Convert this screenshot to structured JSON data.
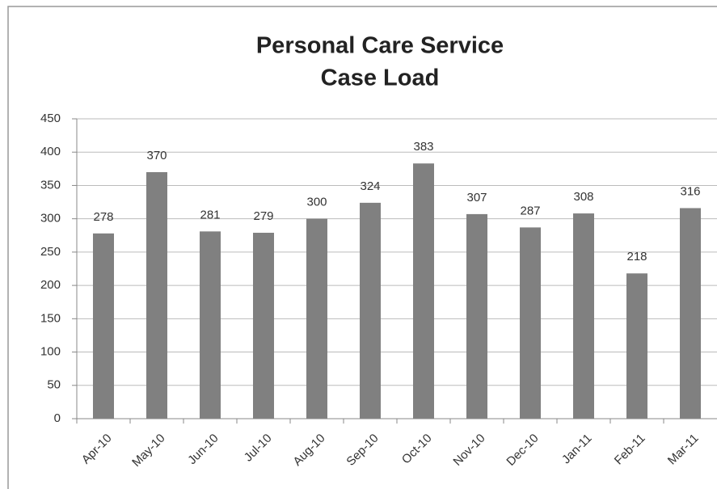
{
  "chart_data": {
    "type": "bar",
    "title": [
      "Personal Care Service",
      "Case Load"
    ],
    "categories": [
      "Apr-10",
      "May-10",
      "Jun-10",
      "Jul-10",
      "Aug-10",
      "Sep-10",
      "Oct-10",
      "Nov-10",
      "Dec-10",
      "Jan-11",
      "Feb-11",
      "Mar-11"
    ],
    "values": [
      278,
      370,
      281,
      279,
      300,
      324,
      383,
      307,
      287,
      308,
      218,
      316
    ],
    "color": "#808080",
    "ylim": [
      0,
      450
    ],
    "yticks": [
      0,
      50,
      100,
      150,
      200,
      250,
      300,
      350,
      400,
      450
    ],
    "grid": true
  }
}
